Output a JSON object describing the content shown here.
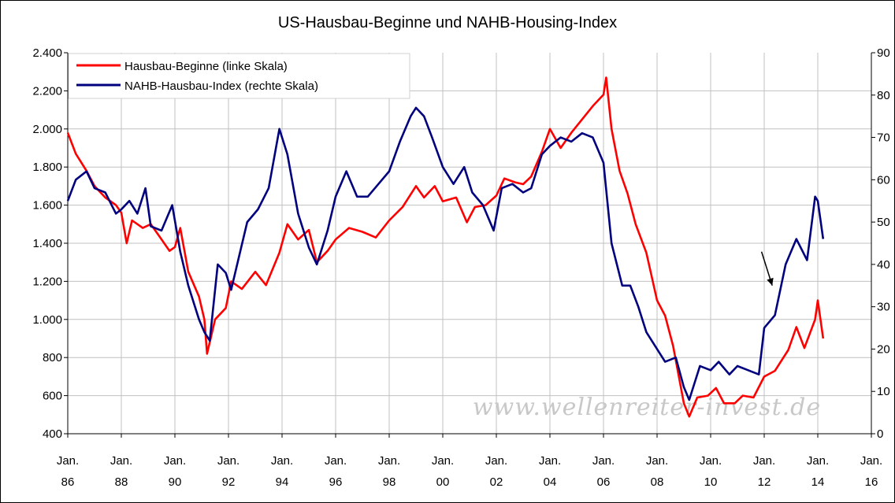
{
  "chart_data": {
    "type": "line",
    "title": "US-Hausbau-Beginne und NAHB-Housing-Index",
    "watermark": "www.wellenreiter-invest.de",
    "legend_position": "top-left",
    "x_ticks": [
      {
        "year": 1986,
        "line1": "Jan.",
        "line2": "86"
      },
      {
        "year": 1988,
        "line1": "Jan.",
        "line2": "88"
      },
      {
        "year": 1990,
        "line1": "Jan.",
        "line2": "90"
      },
      {
        "year": 1992,
        "line1": "Jan.",
        "line2": "92"
      },
      {
        "year": 1994,
        "line1": "Jan.",
        "line2": "94"
      },
      {
        "year": 1996,
        "line1": "Jan.",
        "line2": "96"
      },
      {
        "year": 1998,
        "line1": "Jan.",
        "line2": "98"
      },
      {
        "year": 2000,
        "line1": "Jan.",
        "line2": "00"
      },
      {
        "year": 2002,
        "line1": "Jan.",
        "line2": "02"
      },
      {
        "year": 2004,
        "line1": "Jan.",
        "line2": "04"
      },
      {
        "year": 2006,
        "line1": "Jan.",
        "line2": "06"
      },
      {
        "year": 2008,
        "line1": "Jan.",
        "line2": "08"
      },
      {
        "year": 2010,
        "line1": "Jan.",
        "line2": "10"
      },
      {
        "year": 2012,
        "line1": "Jan.",
        "line2": "12"
      },
      {
        "year": 2014,
        "line1": "Jan.",
        "line2": "14"
      },
      {
        "year": 2016,
        "line1": "Jan.",
        "line2": "16"
      }
    ],
    "xlim": [
      1986,
      2016
    ],
    "y_left": {
      "range": [
        400,
        2400
      ],
      "ticks": [
        400,
        600,
        800,
        1000,
        1200,
        1400,
        1600,
        1800,
        2000,
        2200,
        2400
      ],
      "labels": [
        "400",
        "600",
        "800",
        "1.000",
        "1.200",
        "1.400",
        "1.600",
        "1.800",
        "2.000",
        "2.200",
        "2.400"
      ]
    },
    "y_right": {
      "range": [
        0,
        90
      ],
      "ticks": [
        0,
        10,
        20,
        30,
        40,
        50,
        60,
        70,
        80,
        90
      ],
      "labels": [
        "0",
        "10",
        "20",
        "30",
        "40",
        "50",
        "60",
        "70",
        "80",
        "90"
      ]
    },
    "grid": true,
    "series": [
      {
        "name": "Hausbau-Beginne (linke Skala)",
        "axis": "left",
        "color": "#ff0000",
        "points": [
          [
            1986.0,
            1980
          ],
          [
            1986.3,
            1870
          ],
          [
            1986.7,
            1780
          ],
          [
            1987.0,
            1700
          ],
          [
            1987.4,
            1640
          ],
          [
            1987.8,
            1600
          ],
          [
            1988.0,
            1560
          ],
          [
            1988.2,
            1400
          ],
          [
            1988.4,
            1520
          ],
          [
            1988.8,
            1480
          ],
          [
            1989.1,
            1500
          ],
          [
            1989.4,
            1440
          ],
          [
            1989.8,
            1360
          ],
          [
            1990.0,
            1380
          ],
          [
            1990.2,
            1480
          ],
          [
            1990.5,
            1250
          ],
          [
            1990.9,
            1120
          ],
          [
            1991.1,
            1000
          ],
          [
            1991.2,
            820
          ],
          [
            1991.5,
            1000
          ],
          [
            1991.9,
            1060
          ],
          [
            1992.1,
            1200
          ],
          [
            1992.5,
            1160
          ],
          [
            1993.0,
            1250
          ],
          [
            1993.4,
            1180
          ],
          [
            1993.9,
            1350
          ],
          [
            1994.2,
            1500
          ],
          [
            1994.6,
            1420
          ],
          [
            1995.0,
            1470
          ],
          [
            1995.3,
            1300
          ],
          [
            1995.7,
            1360
          ],
          [
            1996.0,
            1420
          ],
          [
            1996.5,
            1480
          ],
          [
            1997.0,
            1460
          ],
          [
            1997.5,
            1430
          ],
          [
            1998.0,
            1520
          ],
          [
            1998.5,
            1590
          ],
          [
            1999.0,
            1700
          ],
          [
            1999.3,
            1640
          ],
          [
            1999.7,
            1700
          ],
          [
            2000.0,
            1620
          ],
          [
            2000.5,
            1640
          ],
          [
            2000.9,
            1510
          ],
          [
            2001.2,
            1590
          ],
          [
            2001.6,
            1600
          ],
          [
            2002.0,
            1650
          ],
          [
            2002.3,
            1740
          ],
          [
            2002.7,
            1720
          ],
          [
            2003.0,
            1710
          ],
          [
            2003.3,
            1750
          ],
          [
            2003.7,
            1880
          ],
          [
            2004.0,
            2000
          ],
          [
            2004.4,
            1900
          ],
          [
            2004.8,
            1980
          ],
          [
            2005.2,
            2050
          ],
          [
            2005.6,
            2120
          ],
          [
            2006.0,
            2180
          ],
          [
            2006.1,
            2270
          ],
          [
            2006.3,
            2000
          ],
          [
            2006.6,
            1780
          ],
          [
            2006.9,
            1660
          ],
          [
            2007.2,
            1500
          ],
          [
            2007.6,
            1350
          ],
          [
            2008.0,
            1100
          ],
          [
            2008.3,
            1020
          ],
          [
            2008.6,
            860
          ],
          [
            2009.0,
            560
          ],
          [
            2009.2,
            490
          ],
          [
            2009.5,
            590
          ],
          [
            2009.9,
            600
          ],
          [
            2010.2,
            640
          ],
          [
            2010.5,
            560
          ],
          [
            2010.9,
            560
          ],
          [
            2011.2,
            600
          ],
          [
            2011.6,
            590
          ],
          [
            2012.0,
            700
          ],
          [
            2012.4,
            730
          ],
          [
            2012.9,
            840
          ],
          [
            2013.2,
            960
          ],
          [
            2013.5,
            850
          ],
          [
            2013.9,
            1000
          ],
          [
            2014.0,
            1100
          ],
          [
            2014.2,
            900
          ]
        ]
      },
      {
        "name": "NAHB-Hausbau-Index (rechte Skala)",
        "axis": "right",
        "color": "#00007f",
        "points": [
          [
            1986.0,
            55
          ],
          [
            1986.3,
            60
          ],
          [
            1986.7,
            62
          ],
          [
            1987.0,
            58
          ],
          [
            1987.4,
            57
          ],
          [
            1987.8,
            52
          ],
          [
            1988.0,
            53
          ],
          [
            1988.3,
            55
          ],
          [
            1988.6,
            52
          ],
          [
            1988.9,
            58
          ],
          [
            1989.1,
            49
          ],
          [
            1989.5,
            48
          ],
          [
            1989.9,
            54
          ],
          [
            1990.2,
            43
          ],
          [
            1990.5,
            35
          ],
          [
            1990.9,
            27
          ],
          [
            1991.1,
            24
          ],
          [
            1991.3,
            22
          ],
          [
            1991.6,
            40
          ],
          [
            1991.9,
            38
          ],
          [
            1992.1,
            34
          ],
          [
            1992.4,
            42
          ],
          [
            1992.7,
            50
          ],
          [
            1993.1,
            53
          ],
          [
            1993.5,
            58
          ],
          [
            1993.9,
            72
          ],
          [
            1994.2,
            66
          ],
          [
            1994.6,
            52
          ],
          [
            1995.0,
            44
          ],
          [
            1995.3,
            40
          ],
          [
            1995.7,
            48
          ],
          [
            1996.0,
            56
          ],
          [
            1996.4,
            62
          ],
          [
            1996.8,
            56
          ],
          [
            1997.2,
            56
          ],
          [
            1997.6,
            59
          ],
          [
            1998.0,
            62
          ],
          [
            1998.4,
            69
          ],
          [
            1998.8,
            75
          ],
          [
            1999.0,
            77
          ],
          [
            1999.3,
            75
          ],
          [
            1999.6,
            70
          ],
          [
            2000.0,
            63
          ],
          [
            2000.4,
            59
          ],
          [
            2000.8,
            63
          ],
          [
            2001.1,
            57
          ],
          [
            2001.5,
            54
          ],
          [
            2001.9,
            48
          ],
          [
            2002.2,
            58
          ],
          [
            2002.6,
            59
          ],
          [
            2003.0,
            57
          ],
          [
            2003.3,
            58
          ],
          [
            2003.7,
            66
          ],
          [
            2004.0,
            68
          ],
          [
            2004.4,
            70
          ],
          [
            2004.8,
            69
          ],
          [
            2005.2,
            71
          ],
          [
            2005.6,
            70
          ],
          [
            2006.0,
            64
          ],
          [
            2006.3,
            45
          ],
          [
            2006.7,
            35
          ],
          [
            2007.0,
            35
          ],
          [
            2007.3,
            30
          ],
          [
            2007.6,
            24
          ],
          [
            2008.0,
            20
          ],
          [
            2008.3,
            17
          ],
          [
            2008.7,
            18
          ],
          [
            2009.0,
            11
          ],
          [
            2009.2,
            8
          ],
          [
            2009.6,
            16
          ],
          [
            2010.0,
            15
          ],
          [
            2010.3,
            17
          ],
          [
            2010.7,
            14
          ],
          [
            2011.0,
            16
          ],
          [
            2011.4,
            15
          ],
          [
            2011.8,
            14
          ],
          [
            2012.0,
            25
          ],
          [
            2012.4,
            28
          ],
          [
            2012.8,
            40
          ],
          [
            2013.2,
            46
          ],
          [
            2013.6,
            41
          ],
          [
            2013.9,
            56
          ],
          [
            2014.0,
            55
          ],
          [
            2014.2,
            46
          ]
        ]
      }
    ],
    "annotations": [
      {
        "type": "arrow",
        "from": [
          2011.9,
          43
        ],
        "to": [
          2012.3,
          35
        ]
      }
    ]
  }
}
